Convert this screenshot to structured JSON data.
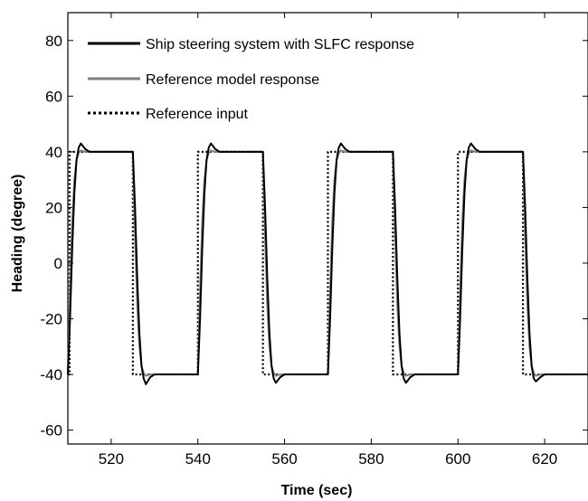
{
  "chart_data": {
    "type": "line",
    "title": "",
    "xlabel": "Time (sec)",
    "ylabel": "Heading (degree)",
    "xlim": [
      510,
      630
    ],
    "ylim": [
      -65,
      90
    ],
    "xticks": [
      520,
      540,
      560,
      580,
      600,
      620
    ],
    "yticks": [
      -60,
      -40,
      -20,
      0,
      20,
      40,
      60,
      80
    ],
    "grid": false,
    "legend_position": "top-left",
    "series": [
      {
        "name": "Reference input",
        "style": "dotted",
        "color": "#000000",
        "x": [
          510,
          510.4,
          510.4,
          525,
          525,
          540,
          540,
          555,
          555,
          570,
          570,
          585,
          585,
          600,
          600,
          615,
          615,
          630
        ],
        "y": [
          -40,
          -40,
          40,
          40,
          -40,
          -40,
          40,
          40,
          -40,
          -40,
          40,
          40,
          -40,
          -40,
          40,
          40,
          -40,
          -40
        ]
      },
      {
        "name": "Reference model response",
        "style": "solid",
        "color": "#808080",
        "x": [
          510,
          510.5,
          511,
          511.5,
          512,
          512.5,
          513,
          514,
          525,
          525.5,
          526,
          526.5,
          527,
          527.5,
          528,
          529,
          540,
          540.5,
          541,
          541.5,
          542,
          542.5,
          543,
          544,
          555,
          555.5,
          556,
          556.5,
          557,
          557.5,
          558,
          559,
          570,
          570.5,
          571,
          571.5,
          572,
          572.5,
          573,
          574,
          585,
          585.5,
          586,
          586.5,
          587,
          587.5,
          588,
          589,
          600,
          600.5,
          601,
          601.5,
          602,
          602.5,
          603,
          604,
          615,
          615.5,
          616,
          616.5,
          617,
          617.5,
          618,
          619,
          630
        ],
        "y": [
          -40,
          -10,
          15,
          30,
          37,
          39.5,
          40.5,
          40,
          40,
          10,
          -15,
          -30,
          -37,
          -39.5,
          -40.5,
          -40,
          -40,
          -10,
          15,
          30,
          37,
          39.5,
          40.5,
          40,
          40,
          10,
          -15,
          -30,
          -37,
          -39.5,
          -40.5,
          -40,
          -40,
          -10,
          15,
          30,
          37,
          39.5,
          40.5,
          40,
          40,
          10,
          -15,
          -30,
          -37,
          -39.5,
          -40.5,
          -40,
          -40,
          -10,
          15,
          30,
          37,
          39.5,
          40.5,
          40,
          40,
          10,
          -15,
          -30,
          -37,
          -39.5,
          -40.5,
          -40,
          -40
        ]
      },
      {
        "name": "Ship steering system with SLFC response",
        "style": "solid",
        "color": "#000000",
        "x": [
          510,
          510.5,
          511,
          511.5,
          512,
          512.5,
          513,
          514,
          515,
          525,
          525.5,
          526,
          526.5,
          527,
          527.5,
          528,
          529,
          530,
          540,
          540.5,
          541,
          541.5,
          542,
          542.5,
          543,
          544,
          545,
          555,
          555.5,
          556,
          556.5,
          557,
          557.5,
          558,
          559,
          560,
          570,
          570.5,
          571,
          571.5,
          572,
          572.5,
          573,
          574,
          575,
          585,
          585.5,
          586,
          586.5,
          587,
          587.5,
          588,
          589,
          590,
          600,
          600.5,
          601,
          601.5,
          602,
          602.5,
          603,
          604,
          605,
          615,
          615.5,
          616,
          616.5,
          617,
          617.5,
          618,
          619,
          620,
          630
        ],
        "y": [
          -40,
          -20,
          5,
          25,
          37,
          41.5,
          43,
          41,
          40,
          40,
          20,
          -5,
          -25,
          -37,
          -41.5,
          -43.5,
          -41,
          -40,
          -40,
          -20,
          5,
          25,
          37,
          41.5,
          43,
          41,
          40,
          40,
          20,
          -5,
          -25,
          -37,
          -41.5,
          -43,
          -41,
          -40,
          -40,
          -20,
          5,
          25,
          37,
          41.5,
          43,
          41,
          40,
          40,
          20,
          -5,
          -25,
          -37,
          -41.5,
          -43,
          -41,
          -40,
          -40,
          -20,
          5,
          25,
          37,
          41.5,
          43,
          41,
          40,
          40,
          20,
          -5,
          -25,
          -37,
          -41.5,
          -42.5,
          -41,
          -40,
          -40
        ]
      }
    ]
  }
}
